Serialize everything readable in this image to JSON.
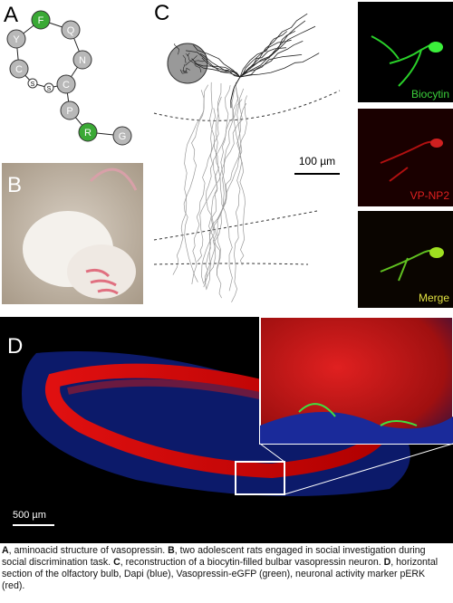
{
  "panels": {
    "a": "A",
    "b": "B",
    "c": "C",
    "d": "D"
  },
  "peptide": {
    "nodes": [
      {
        "label": "C",
        "color": "#b8b8b8"
      },
      {
        "label": "Y",
        "color": "#b8b8b8"
      },
      {
        "label": "F",
        "color": "#3aa935"
      },
      {
        "label": "Q",
        "color": "#b8b8b8"
      },
      {
        "label": "N",
        "color": "#b8b8b8"
      },
      {
        "label": "C",
        "color": "#b8b8b8"
      },
      {
        "label": "P",
        "color": "#b8b8b8"
      },
      {
        "label": "R",
        "color": "#3aa935"
      },
      {
        "label": "G",
        "color": "#b8b8b8"
      }
    ],
    "bridge": [
      "S",
      "S"
    ]
  },
  "images": {
    "biocytin": "Biocytin",
    "vp_np2": "VP-NP2",
    "merge": "Merge"
  },
  "scale_bars": {
    "c": "100 µm",
    "d": "500 µm"
  },
  "caption": [
    {
      "label": "A",
      "text": ", aminoacid structure of vasopressin. "
    },
    {
      "label": "B",
      "text": ", two adolescent rats engaged in social investigation during social discrimination task. "
    },
    {
      "label": "C",
      "text": ", reconstruction of a biocytin-filled bulbar vasopressin neuron. "
    },
    {
      "label": "D",
      "text": ", horizontal section of the olfactory bulb, Dapi (blue), Vasopressin-eGFP (green), neuronal activity marker pERK (red)."
    }
  ]
}
